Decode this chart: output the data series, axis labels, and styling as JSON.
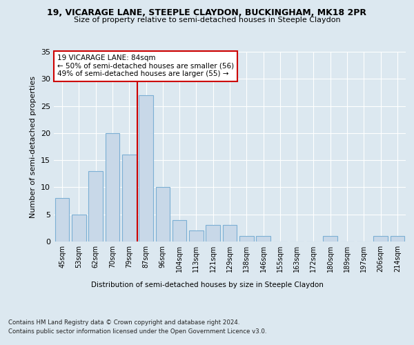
{
  "title1": "19, VICARAGE LANE, STEEPLE CLAYDON, BUCKINGHAM, MK18 2PR",
  "title2": "Size of property relative to semi-detached houses in Steeple Claydon",
  "xlabel": "Distribution of semi-detached houses by size in Steeple Claydon",
  "ylabel": "Number of semi-detached properties",
  "categories": [
    "45sqm",
    "53sqm",
    "62sqm",
    "70sqm",
    "79sqm",
    "87sqm",
    "96sqm",
    "104sqm",
    "113sqm",
    "121sqm",
    "129sqm",
    "138sqm",
    "146sqm",
    "155sqm",
    "163sqm",
    "172sqm",
    "180sqm",
    "189sqm",
    "197sqm",
    "206sqm",
    "214sqm"
  ],
  "values": [
    8,
    5,
    13,
    20,
    16,
    27,
    10,
    4,
    2,
    3,
    3,
    1,
    1,
    0,
    0,
    0,
    1,
    0,
    0,
    1,
    1
  ],
  "bar_color": "#c8d8e8",
  "bar_edge_color": "#7bafd4",
  "vline_x_idx": 5,
  "vline_color": "#cc0000",
  "annotation_title": "19 VICARAGE LANE: 84sqm",
  "annotation_line1": "← 50% of semi-detached houses are smaller (56)",
  "annotation_line2": "49% of semi-detached houses are larger (55) →",
  "annotation_box_facecolor": "#ffffff",
  "annotation_box_edgecolor": "#cc0000",
  "ylim": [
    0,
    35
  ],
  "yticks": [
    0,
    5,
    10,
    15,
    20,
    25,
    30,
    35
  ],
  "footer1": "Contains HM Land Registry data © Crown copyright and database right 2024.",
  "footer2": "Contains public sector information licensed under the Open Government Licence v3.0.",
  "bg_color": "#dce8f0",
  "plot_bg_color": "#dce8f0"
}
